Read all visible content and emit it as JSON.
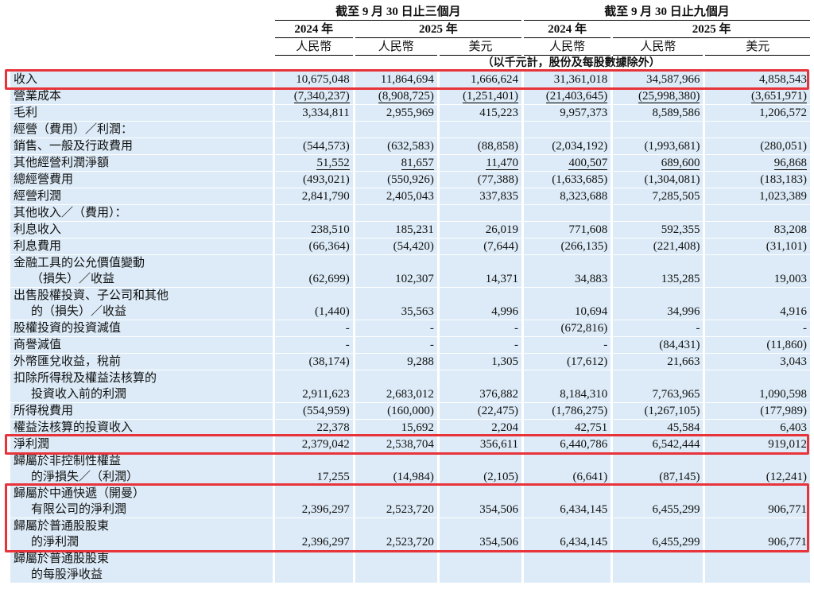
{
  "header": {
    "groups": [
      "截至 9 月 30 日止三個月",
      "截至 9 月 30 日止九個月"
    ],
    "years": [
      "2024 年",
      "2025 年",
      "2024 年",
      "2025 年"
    ],
    "currencies": [
      "人民幣",
      "人民幣",
      "美元",
      "人民幣",
      "人民幣",
      "美元"
    ],
    "note": "（以千元計，股份及每股數據除外）"
  },
  "table": {
    "rows": [
      {
        "label": [
          "收入"
        ],
        "values": [
          "10,675,048",
          "11,864,694",
          "1,666,624",
          "31,361,018",
          "34,587,966",
          "4,858,543"
        ]
      },
      {
        "label": [
          "營業成本"
        ],
        "values": [
          "(7,340,237)",
          "(8,908,725)",
          "(1,251,401)",
          "(21,403,645)",
          "(25,998,380)",
          "(3,651,971)"
        ]
      },
      {
        "label": [
          "毛利"
        ],
        "values": [
          "3,334,811",
          "2,955,969",
          "415,223",
          "9,957,373",
          "8,589,586",
          "1,206,572"
        ]
      },
      {
        "label": [
          "經營（費用）／利潤："
        ]
      },
      {
        "label": [
          "銷售、一般及行政費用"
        ],
        "values": [
          "(544,573)",
          "(632,583)",
          "(88,858)",
          "(2,034,192)",
          "(1,993,681)",
          "(280,051)"
        ]
      },
      {
        "label": [
          "其他經營利潤淨額"
        ],
        "values": [
          "51,552",
          "81,657",
          "11,470",
          "400,507",
          "689,600",
          "96,868"
        ]
      },
      {
        "label": [
          "總經營費用"
        ],
        "values": [
          "(493,021)",
          "(550,926)",
          "(77,388)",
          "(1,633,685)",
          "(1,304,081)",
          "(183,183)"
        ]
      },
      {
        "label": [
          "經營利潤"
        ],
        "values": [
          "2,841,790",
          "2,405,043",
          "337,835",
          "8,323,688",
          "7,285,505",
          "1,023,389"
        ]
      },
      {
        "label": [
          "其他收入／（費用）："
        ]
      },
      {
        "label": [
          "利息收入"
        ],
        "values": [
          "238,510",
          "185,231",
          "26,019",
          "771,608",
          "592,355",
          "83,208"
        ]
      },
      {
        "label": [
          "利息費用"
        ],
        "values": [
          "(66,364)",
          "(54,420)",
          "(7,644)",
          "(266,135)",
          "(221,408)",
          "(31,101)"
        ]
      },
      {
        "label": [
          "金融工具的公允價值變動",
          "（損失）／收益"
        ],
        "values": [
          "(62,699)",
          "102,307",
          "14,371",
          "34,883",
          "135,285",
          "19,003"
        ]
      },
      {
        "label": [
          "出售股權投資、子公司和其他",
          "的（損失）／收益"
        ],
        "values": [
          "(1,440)",
          "35,563",
          "4,996",
          "10,694",
          "34,996",
          "4,916"
        ]
      },
      {
        "label": [
          "股權投資的投資減值"
        ],
        "values": [
          "-",
          "-",
          "-",
          "(672,816)",
          "-",
          "-"
        ]
      },
      {
        "label": [
          "商譽減值"
        ],
        "values": [
          "-",
          "-",
          "-",
          "-",
          "(84,431)",
          "(11,860)"
        ]
      },
      {
        "label": [
          "外幣匯兌收益，稅前"
        ],
        "values": [
          "(38,174)",
          "9,288",
          "1,305",
          "(17,612)",
          "21,663",
          "3,043"
        ]
      },
      {
        "label": [
          "扣除所得稅及權益法核算的",
          "投資收入前的利潤"
        ],
        "values": [
          "2,911,623",
          "2,683,012",
          "376,882",
          "8,184,310",
          "7,763,965",
          "1,090,598"
        ]
      },
      {
        "label": [
          "所得稅費用"
        ],
        "values": [
          "(554,959)",
          "(160,000)",
          "(22,475)",
          "(1,786,275)",
          "(1,267,105)",
          "(177,989)"
        ]
      },
      {
        "label": [
          "權益法核算的投資收入"
        ],
        "values": [
          "22,378",
          "15,692",
          "2,204",
          "42,751",
          "45,584",
          "6,403"
        ]
      },
      {
        "label": [
          "淨利潤"
        ],
        "values": [
          "2,379,042",
          "2,538,704",
          "356,611",
          "6,440,786",
          "6,542,444",
          "919,012"
        ]
      },
      {
        "label": [
          "歸屬於非控制性權益",
          "的淨損失／（利潤）"
        ],
        "values": [
          "17,255",
          "(14,984)",
          "(2,105)",
          "(6,641)",
          "(87,145)",
          "(12,241)"
        ]
      },
      {
        "label": [
          "歸屬於中通快遞（開曼）",
          "有限公司的淨利潤"
        ],
        "values": [
          "2,396,297",
          "2,523,720",
          "354,506",
          "6,434,145",
          "6,455,299",
          "906,771"
        ]
      },
      {
        "label": [
          "歸屬於普通股股東",
          "的淨利潤"
        ],
        "values": [
          "2,396,297",
          "2,523,720",
          "354,506",
          "6,434,145",
          "6,455,299",
          "906,771"
        ]
      },
      {
        "label": [
          "歸屬於普通股股東",
          "的每股淨收益"
        ]
      }
    ]
  }
}
